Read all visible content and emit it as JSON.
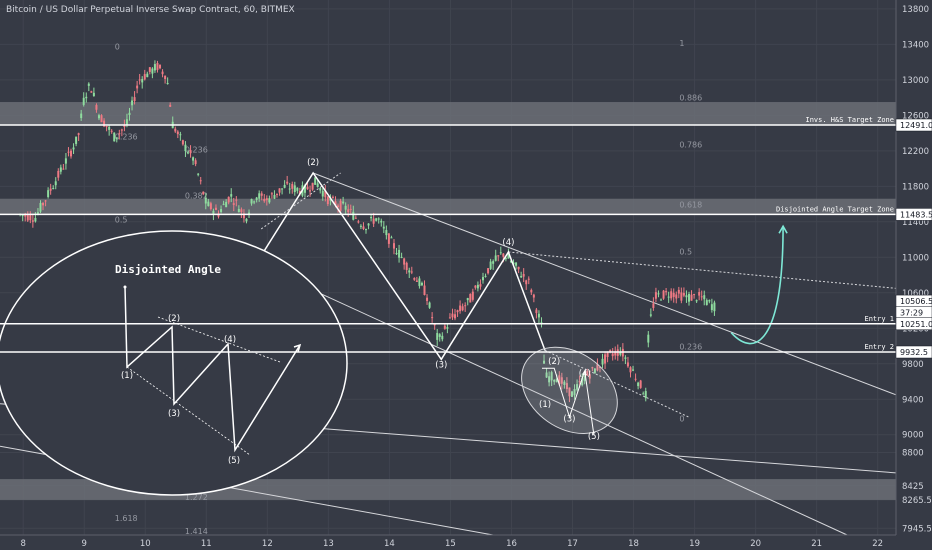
{
  "chart_data": {
    "type": "candlestick",
    "title": "Bitcoin / US Dollar Perpetual Inverse Swap Contract, 60, BITMEX",
    "x_ticks": [
      "8",
      "9",
      "10",
      "11",
      "12",
      "13",
      "14",
      "15",
      "16",
      "17",
      "18",
      "19",
      "20",
      "21",
      "22"
    ],
    "y_ticks": [
      13800,
      13400,
      13000,
      12600,
      12200,
      11800,
      11400,
      11000,
      10600,
      10200,
      9800,
      9400,
      9000,
      8800,
      8425,
      8265.5,
      7945.5
    ],
    "ylim": [
      7870,
      13900
    ],
    "price_labels": [
      {
        "value": 12491.0,
        "text": "12491.0",
        "style": "white"
      },
      {
        "value": 11483.5,
        "text": "11483.5",
        "style": "white"
      },
      {
        "value": 10506.5,
        "text": "10506.5",
        "style": "white"
      },
      {
        "value": 10380,
        "text": "37:29",
        "style": "white"
      },
      {
        "value": 10251.0,
        "text": "10251.0",
        "style": "white"
      },
      {
        "value": 9932.5,
        "text": "9932.5",
        "style": "white"
      }
    ],
    "horizontal_lines": [
      {
        "value": 12491.0,
        "label": "Invs. H&S Target Zone"
      },
      {
        "value": 11483.5,
        "label": "Disjointed Angle Target Zone"
      },
      {
        "value": 10251.0,
        "label": "Entry 1"
      },
      {
        "value": 9932.5,
        "label": "Entry 2"
      }
    ],
    "zones": [
      {
        "from": 12491,
        "to": 12750
      },
      {
        "from": 11483.5,
        "to": 11660
      },
      {
        "from": 8265.5,
        "to": 8500
      }
    ],
    "fib_labels": [
      {
        "text": "0",
        "x": 9.5,
        "y": 13340
      },
      {
        "text": "0.236",
        "x": 10.65,
        "y": 12180
      },
      {
        "text": "0.382",
        "x": 10.65,
        "y": 11660
      },
      {
        "text": "0.618",
        "x": 10.65,
        "y": 10550
      },
      {
        "text": "0.786",
        "x": 10.65,
        "y": 9950
      },
      {
        "text": "1",
        "x": 10.65,
        "y": 9180
      },
      {
        "text": "1.272",
        "x": 10.65,
        "y": 8265
      },
      {
        "text": "1.414",
        "x": 10.65,
        "y": 7880
      },
      {
        "text": "0.236",
        "x": 9.5,
        "y": 12330
      },
      {
        "text": "0.5",
        "x": 9.5,
        "y": 11390
      },
      {
        "text": "0.618",
        "x": 9.5,
        "y": 11000
      },
      {
        "text": "0.786",
        "x": 9.5,
        "y": 10380
      },
      {
        "text": "0.886",
        "x": 9.5,
        "y": 10050
      },
      {
        "text": "1.272",
        "x": 9.5,
        "y": 8780
      },
      {
        "text": "1.414",
        "x": 9.5,
        "y": 8470
      },
      {
        "text": "1.618",
        "x": 9.5,
        "y": 8025
      },
      {
        "text": "0.886",
        "x": 18.75,
        "y": 12770
      },
      {
        "text": "0.786",
        "x": 18.75,
        "y": 12240
      },
      {
        "text": "0.618",
        "x": 18.75,
        "y": 11560
      },
      {
        "text": "0.5",
        "x": 18.75,
        "y": 11030
      },
      {
        "text": "0.236",
        "x": 18.75,
        "y": 9960
      },
      {
        "text": "1",
        "x": 18.75,
        "y": 13380
      },
      {
        "text": "0",
        "x": 18.75,
        "y": 9150
      }
    ],
    "wave_labels": [
      {
        "text": "(1)",
        "x": 11.7,
        "y": 10750
      },
      {
        "text": "(2)",
        "x": 12.75,
        "y": 12040
      },
      {
        "text": "(3)",
        "x": 14.85,
        "y": 9760
      },
      {
        "text": "(4)",
        "x": 15.95,
        "y": 11140
      },
      {
        "text": "(1)",
        "x": 16.55,
        "y": 9310
      },
      {
        "text": "(2)",
        "x": 16.7,
        "y": 9800
      },
      {
        "text": "(3)",
        "x": 16.95,
        "y": 9150
      },
      {
        "text": "(4)",
        "x": 17.2,
        "y": 9660
      },
      {
        "text": "(5)",
        "x": 17.35,
        "y": 8950
      }
    ],
    "inset": {
      "title": "Disjointed Angle",
      "labels": [
        "(1)",
        "(2)",
        "(3)",
        "(4)",
        "(5)"
      ]
    },
    "candle_path": [
      [
        7.95,
        11480
      ],
      [
        8.2,
        11450
      ],
      [
        8.4,
        11700
      ],
      [
        8.6,
        11950
      ],
      [
        8.9,
        12350
      ],
      [
        9.0,
        12800
      ],
      [
        9.1,
        12950
      ],
      [
        9.25,
        12600
      ],
      [
        9.5,
        12350
      ],
      [
        9.7,
        12500
      ],
      [
        9.9,
        13000
      ],
      [
        10.2,
        13150
      ],
      [
        10.35,
        13050
      ],
      [
        10.45,
        12500
      ],
      [
        10.6,
        12300
      ],
      [
        10.8,
        12100
      ],
      [
        11.0,
        11600
      ],
      [
        11.2,
        11500
      ],
      [
        11.4,
        11700
      ],
      [
        11.65,
        11450
      ],
      [
        11.8,
        11700
      ],
      [
        12.0,
        11650
      ],
      [
        12.3,
        11800
      ],
      [
        12.6,
        11750
      ],
      [
        12.8,
        11850
      ],
      [
        13.0,
        11650
      ],
      [
        13.3,
        11550
      ],
      [
        13.6,
        11350
      ],
      [
        13.8,
        11450
      ],
      [
        14.0,
        11200
      ],
      [
        14.3,
        10900
      ],
      [
        14.6,
        10600
      ],
      [
        14.8,
        10050
      ],
      [
        15.0,
        10300
      ],
      [
        15.3,
        10500
      ],
      [
        15.6,
        10850
      ],
      [
        15.85,
        11050
      ],
      [
        16.0,
        10950
      ],
      [
        16.3,
        10700
      ],
      [
        16.5,
        10200
      ],
      [
        16.55,
        9650
      ],
      [
        16.75,
        9650
      ],
      [
        17.0,
        9450
      ],
      [
        17.2,
        9650
      ],
      [
        17.4,
        9750
      ],
      [
        17.6,
        9900
      ],
      [
        17.8,
        9950
      ],
      [
        18.0,
        9700
      ],
      [
        18.2,
        9450
      ],
      [
        18.25,
        10200
      ],
      [
        18.35,
        10550
      ],
      [
        18.6,
        10600
      ],
      [
        18.9,
        10550
      ],
      [
        19.1,
        10550
      ],
      [
        19.3,
        10450
      ]
    ]
  }
}
